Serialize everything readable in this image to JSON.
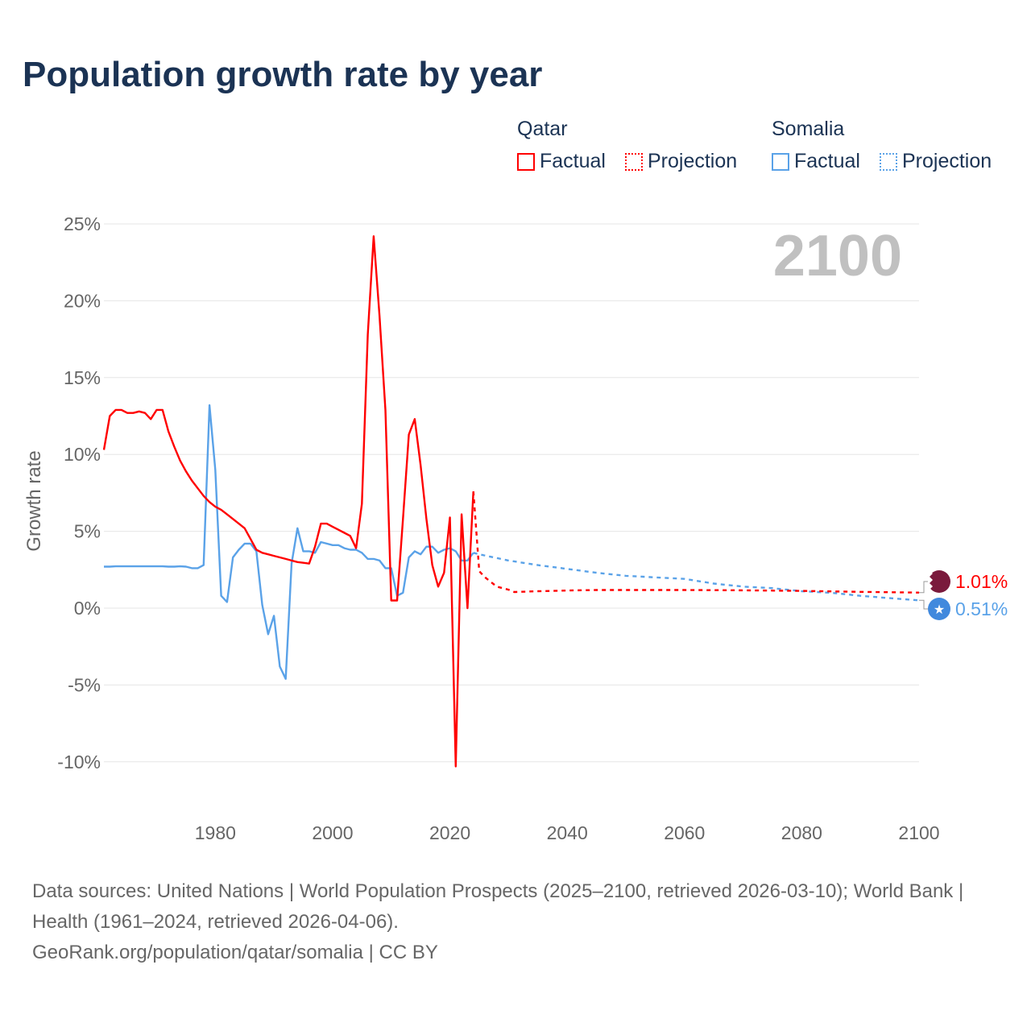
{
  "chart_data": {
    "type": "line",
    "title": "Population growth rate by year",
    "ylabel": "Growth rate",
    "xlabel": "",
    "xlim": [
      1961,
      2100
    ],
    "ylim": [
      -12,
      27
    ],
    "yticks": [
      25,
      20,
      15,
      10,
      5,
      0,
      -5,
      -10
    ],
    "ytick_labels": [
      "25%",
      "20%",
      "15%",
      "10%",
      "5%",
      "0%",
      "-5%",
      "-10%"
    ],
    "xticks": [
      1980,
      2000,
      2020,
      2040,
      2060,
      2080,
      2100
    ],
    "xtick_labels": [
      "1980",
      "2000",
      "2020",
      "2040",
      "2060",
      "2080",
      "2100"
    ],
    "year_label": "2100",
    "grid": true,
    "legend": {
      "placement": "top-right",
      "groups": [
        {
          "name": "Qatar",
          "factual": "Factual",
          "projection": "Projection"
        },
        {
          "name": "Somalia",
          "factual": "Factual",
          "projection": "Projection"
        }
      ]
    },
    "series": [
      {
        "name": "Qatar",
        "color": "#ff0000",
        "flag_color": "#7a1a3c",
        "end_label": "1.01%",
        "factual": {
          "x": [
            1961,
            1962,
            1963,
            1964,
            1965,
            1966,
            1967,
            1968,
            1969,
            1970,
            1971,
            1972,
            1973,
            1974,
            1975,
            1976,
            1977,
            1978,
            1979,
            1980,
            1981,
            1982,
            1983,
            1984,
            1985,
            1986,
            1987,
            1988,
            1989,
            1990,
            1991,
            1992,
            1993,
            1994,
            1995,
            1996,
            1997,
            1998,
            1999,
            2000,
            2001,
            2002,
            2003,
            2004,
            2005,
            2006,
            2007,
            2008,
            2009,
            2010,
            2011,
            2012,
            2013,
            2014,
            2015,
            2016,
            2017,
            2018,
            2019,
            2020,
            2021,
            2022,
            2023,
            2024
          ],
          "y": [
            10.3,
            12.5,
            12.9,
            12.9,
            12.7,
            12.7,
            12.8,
            12.7,
            12.3,
            12.9,
            12.9,
            11.5,
            10.5,
            9.6,
            8.9,
            8.3,
            7.8,
            7.3,
            6.9,
            6.6,
            6.4,
            6.1,
            5.8,
            5.5,
            5.2,
            4.5,
            3.8,
            3.6,
            3.5,
            3.4,
            3.3,
            3.2,
            3.1,
            3.0,
            2.95,
            2.9,
            4.0,
            5.5,
            5.5,
            5.3,
            5.1,
            4.9,
            4.7,
            3.9,
            6.8,
            17.8,
            24.2,
            19.0,
            12.9,
            0.5,
            0.5,
            5.8,
            11.3,
            12.3,
            9.3,
            5.8,
            2.8,
            1.4,
            2.3,
            5.9,
            -10.3,
            6.1,
            0.0,
            7.6
          ]
        },
        "projection": {
          "x": [
            2024,
            2025,
            2026,
            2027,
            2028,
            2030,
            2031,
            2035,
            2040,
            2045,
            2050,
            2060,
            2070,
            2080,
            2090,
            2100
          ],
          "y": [
            7.6,
            2.4,
            2.0,
            1.7,
            1.4,
            1.2,
            1.05,
            1.1,
            1.15,
            1.18,
            1.18,
            1.18,
            1.16,
            1.12,
            1.06,
            1.01
          ]
        }
      },
      {
        "name": "Somalia",
        "color": "#5aa2e8",
        "flag_color": "#4189dd",
        "end_label": "0.51%",
        "factual": {
          "x": [
            1961,
            1962,
            1963,
            1964,
            1965,
            1966,
            1967,
            1968,
            1969,
            1970,
            1971,
            1972,
            1973,
            1974,
            1975,
            1976,
            1977,
            1978,
            1979,
            1980,
            1981,
            1982,
            1983,
            1984,
            1985,
            1986,
            1987,
            1988,
            1989,
            1990,
            1991,
            1992,
            1993,
            1994,
            1995,
            1996,
            1997,
            1998,
            1999,
            2000,
            2001,
            2002,
            2003,
            2004,
            2005,
            2006,
            2007,
            2008,
            2009,
            2010,
            2011,
            2012,
            2013,
            2014,
            2015,
            2016,
            2017,
            2018,
            2019,
            2020,
            2021,
            2022,
            2023,
            2024
          ],
          "y": [
            2.7,
            2.7,
            2.72,
            2.72,
            2.72,
            2.72,
            2.72,
            2.72,
            2.72,
            2.72,
            2.72,
            2.7,
            2.7,
            2.72,
            2.7,
            2.6,
            2.6,
            2.8,
            13.2,
            9.0,
            0.8,
            0.4,
            3.3,
            3.8,
            4.2,
            4.2,
            3.7,
            0.2,
            -1.7,
            -0.5,
            -3.8,
            -4.6,
            2.9,
            5.2,
            3.7,
            3.7,
            3.6,
            4.3,
            4.2,
            4.1,
            4.1,
            3.9,
            3.8,
            3.8,
            3.6,
            3.2,
            3.2,
            3.1,
            2.6,
            2.6,
            0.8,
            1.0,
            3.3,
            3.7,
            3.5,
            4.0,
            4.0,
            3.6,
            3.8,
            3.9,
            3.7,
            3.1,
            3.1,
            3.6
          ]
        },
        "projection": {
          "x": [
            2024,
            2025,
            2030,
            2035,
            2040,
            2045,
            2050,
            2055,
            2060,
            2065,
            2070,
            2075,
            2080,
            2085,
            2090,
            2095,
            2100
          ],
          "y": [
            3.6,
            3.5,
            3.1,
            2.8,
            2.55,
            2.3,
            2.1,
            2.0,
            1.9,
            1.6,
            1.4,
            1.3,
            1.1,
            1.0,
            0.8,
            0.65,
            0.51
          ]
        }
      }
    ]
  },
  "source": {
    "line1": "Data sources: United Nations | World Population Prospects (2025–2100, retrieved 2026-03-10); World Bank | Health (1961–2024, retrieved 2026-04-06).",
    "line2": "GeoRank.org/population/qatar/somalia | CC BY"
  }
}
